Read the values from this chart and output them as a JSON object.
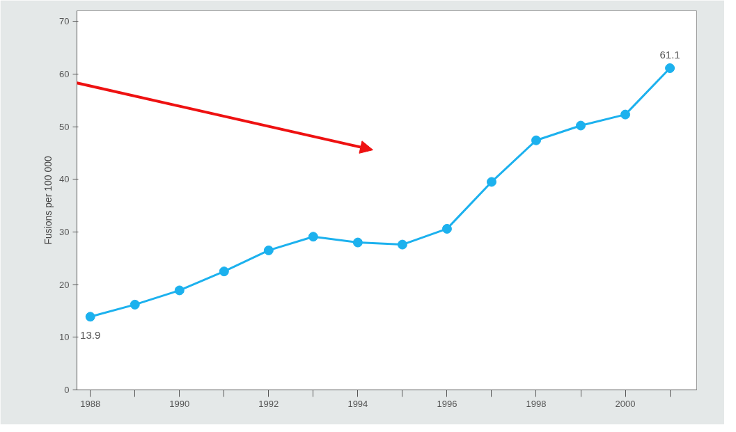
{
  "chart_data": {
    "type": "line",
    "ylabel": "Fusions per 100 000",
    "x": [
      1988,
      1989,
      1990,
      1991,
      1992,
      1993,
      1994,
      1995,
      1996,
      1997,
      1998,
      1999,
      2000,
      2001
    ],
    "series": [
      {
        "color": "#1cb1ee",
        "values": [
          13.9,
          16.2,
          18.9,
          22.5,
          26.5,
          29.1,
          28.0,
          27.6,
          30.6,
          39.5,
          47.4,
          50.2,
          52.3,
          61.1
        ],
        "value_labels": [
          "13.9",
          null,
          null,
          null,
          null,
          null,
          null,
          null,
          null,
          null,
          null,
          null,
          null,
          "61.1"
        ]
      }
    ],
    "xlim": [
      1987.7,
      2001.6
    ],
    "ylim": [
      0,
      72
    ],
    "xticks": [
      1988,
      {
        "value": 1989,
        "label": null
      },
      1990,
      {
        "value": 1991,
        "label": null
      },
      1992,
      {
        "value": 1993,
        "label": null
      },
      1994,
      {
        "value": 1995,
        "label": null
      },
      1996,
      {
        "value": 1997,
        "label": null
      },
      1998,
      {
        "value": 1999,
        "label": null
      },
      2000,
      {
        "value": 2001,
        "label": null
      }
    ],
    "yticks": [
      0,
      10,
      20,
      30,
      40,
      50,
      60,
      70
    ],
    "grid": false,
    "marker": "circle",
    "line_style": "solid"
  }
}
